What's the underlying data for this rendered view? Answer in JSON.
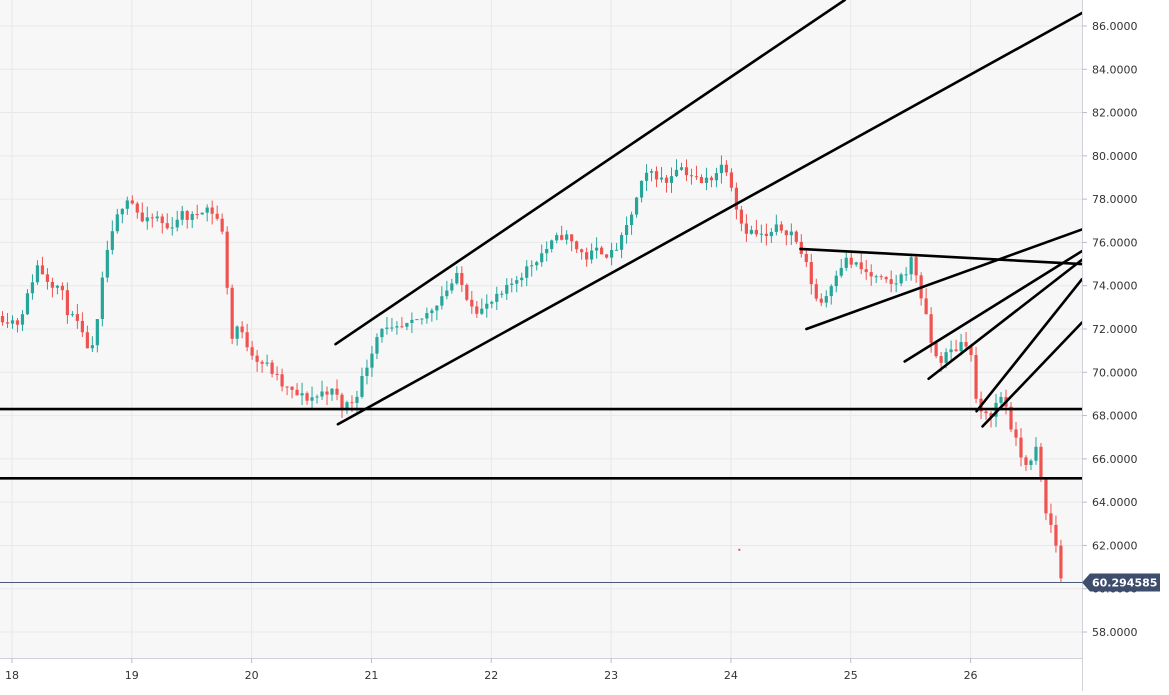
{
  "chart_data": {
    "type": "candlestick",
    "x_label_ticks": [
      "18",
      "19",
      "20",
      "21",
      "22",
      "23",
      "24",
      "25",
      "26"
    ],
    "y_tick_labels": [
      "58.0000",
      "60.0000",
      "62.0000",
      "64.0000",
      "66.0000",
      "68.0000",
      "70.0000",
      "72.0000",
      "74.0000",
      "76.0000",
      "78.0000",
      "80.0000",
      "82.0000",
      "84.0000",
      "86.0000"
    ],
    "ylim": [
      56.8,
      87.2
    ],
    "xlim": [
      17.9,
      26.93
    ],
    "current_price": {
      "label": "60.294585",
      "value": 60.29
    },
    "grid": true,
    "colors": {
      "up": "#26a69a",
      "down": "#ef5350",
      "trendline": "#000000",
      "price_line": "#4a5b7a",
      "grid": "#e8e8ea",
      "background": "#f7f7f8",
      "axis_background": "#ffffff"
    },
    "close_path": [
      [
        17.9,
        72.6
      ],
      [
        18.05,
        72.3
      ],
      [
        18.15,
        73.8
      ],
      [
        18.2,
        75.0
      ],
      [
        18.3,
        74.3
      ],
      [
        18.4,
        73.9
      ],
      [
        18.48,
        72.6
      ],
      [
        18.55,
        72.2
      ],
      [
        18.6,
        71.4
      ],
      [
        18.67,
        71.0
      ],
      [
        18.72,
        72.5
      ],
      [
        18.78,
        75.4
      ],
      [
        18.85,
        76.5
      ],
      [
        18.9,
        77.6
      ],
      [
        18.97,
        78.2
      ],
      [
        19.05,
        77.4
      ],
      [
        19.1,
        76.8
      ],
      [
        19.2,
        77.2
      ],
      [
        19.3,
        76.6
      ],
      [
        19.4,
        77.3
      ],
      [
        19.5,
        77.1
      ],
      [
        19.6,
        77.7
      ],
      [
        19.7,
        77.3
      ],
      [
        19.78,
        76.0
      ],
      [
        19.82,
        71.0
      ],
      [
        19.86,
        72.3
      ],
      [
        19.95,
        71.4
      ],
      [
        20.05,
        70.6
      ],
      [
        20.15,
        70.2
      ],
      [
        20.25,
        69.4
      ],
      [
        20.35,
        69.0
      ],
      [
        20.45,
        68.8
      ],
      [
        20.55,
        68.9
      ],
      [
        20.62,
        69.2
      ],
      [
        20.7,
        69.0
      ],
      [
        20.75,
        68.4
      ],
      [
        20.85,
        68.7
      ],
      [
        20.93,
        69.8
      ],
      [
        21.0,
        71.0
      ],
      [
        21.08,
        72.2
      ],
      [
        21.15,
        71.8
      ],
      [
        21.25,
        72.0
      ],
      [
        21.35,
        72.2
      ],
      [
        21.45,
        72.6
      ],
      [
        21.55,
        73.3
      ],
      [
        21.65,
        74.0
      ],
      [
        21.72,
        74.4
      ],
      [
        21.8,
        73.5
      ],
      [
        21.9,
        72.8
      ],
      [
        22.0,
        73.2
      ],
      [
        22.1,
        73.6
      ],
      [
        22.2,
        74.3
      ],
      [
        22.3,
        74.8
      ],
      [
        22.4,
        75.4
      ],
      [
        22.5,
        75.9
      ],
      [
        22.6,
        76.4
      ],
      [
        22.7,
        75.8
      ],
      [
        22.8,
        75.3
      ],
      [
        22.9,
        75.7
      ],
      [
        23.0,
        75.4
      ],
      [
        23.1,
        76.2
      ],
      [
        23.2,
        77.8
      ],
      [
        23.27,
        78.9
      ],
      [
        23.35,
        79.3
      ],
      [
        23.45,
        78.7
      ],
      [
        23.55,
        79.6
      ],
      [
        23.65,
        79.2
      ],
      [
        23.75,
        78.7
      ],
      [
        23.85,
        79.1
      ],
      [
        23.95,
        79.7
      ],
      [
        24.0,
        78.8
      ],
      [
        24.05,
        77.6
      ],
      [
        24.1,
        76.7
      ],
      [
        24.2,
        76.4
      ],
      [
        24.3,
        76.2
      ],
      [
        24.4,
        76.7
      ],
      [
        24.5,
        76.5
      ],
      [
        24.6,
        75.4
      ],
      [
        24.67,
        74.2
      ],
      [
        24.73,
        73.1
      ],
      [
        24.8,
        73.6
      ],
      [
        24.87,
        74.6
      ],
      [
        24.95,
        75.2
      ],
      [
        25.05,
        74.9
      ],
      [
        25.15,
        74.5
      ],
      [
        25.25,
        74.2
      ],
      [
        25.35,
        74.0
      ],
      [
        25.45,
        74.6
      ],
      [
        25.5,
        75.2
      ],
      [
        25.55,
        74.5
      ],
      [
        25.6,
        73.2
      ],
      [
        25.65,
        71.9
      ],
      [
        25.7,
        70.7
      ],
      [
        25.76,
        70.6
      ],
      [
        25.82,
        70.9
      ],
      [
        25.9,
        71.2
      ],
      [
        25.95,
        71.6
      ],
      [
        26.0,
        70.9
      ],
      [
        26.05,
        68.6
      ],
      [
        26.1,
        67.8
      ],
      [
        26.18,
        68.2
      ],
      [
        26.25,
        68.9
      ],
      [
        26.3,
        68.4
      ],
      [
        26.35,
        67.2
      ],
      [
        26.42,
        66.1
      ],
      [
        26.5,
        65.7
      ],
      [
        26.55,
        66.5
      ],
      [
        26.62,
        63.6
      ],
      [
        26.68,
        62.8
      ],
      [
        26.73,
        61.6
      ],
      [
        26.76,
        60.3
      ]
    ],
    "trend_lines": [
      {
        "from": [
          20.7,
          71.3
        ],
        "to": [
          24.95,
          87.2
        ]
      },
      {
        "from": [
          20.72,
          67.6
        ],
        "to": [
          26.93,
          86.6
        ]
      },
      {
        "from": [
          24.58,
          75.7
        ],
        "to": [
          26.93,
          75.0
        ]
      },
      {
        "from": [
          24.63,
          72.0
        ],
        "to": [
          26.93,
          76.6
        ]
      },
      {
        "from": [
          25.45,
          70.5
        ],
        "to": [
          26.93,
          75.6
        ]
      },
      {
        "from": [
          25.65,
          69.7
        ],
        "to": [
          26.93,
          75.2
        ]
      },
      {
        "from": [
          26.05,
          68.2
        ],
        "to": [
          26.93,
          74.3
        ]
      },
      {
        "from": [
          26.1,
          67.5
        ],
        "to": [
          26.93,
          72.3
        ]
      }
    ],
    "horizontal_levels": [
      68.3,
      65.1
    ],
    "annotations": [
      {
        "type": "marker",
        "x": 24.07,
        "y": 61.8,
        "color": "#ef5350"
      }
    ]
  }
}
